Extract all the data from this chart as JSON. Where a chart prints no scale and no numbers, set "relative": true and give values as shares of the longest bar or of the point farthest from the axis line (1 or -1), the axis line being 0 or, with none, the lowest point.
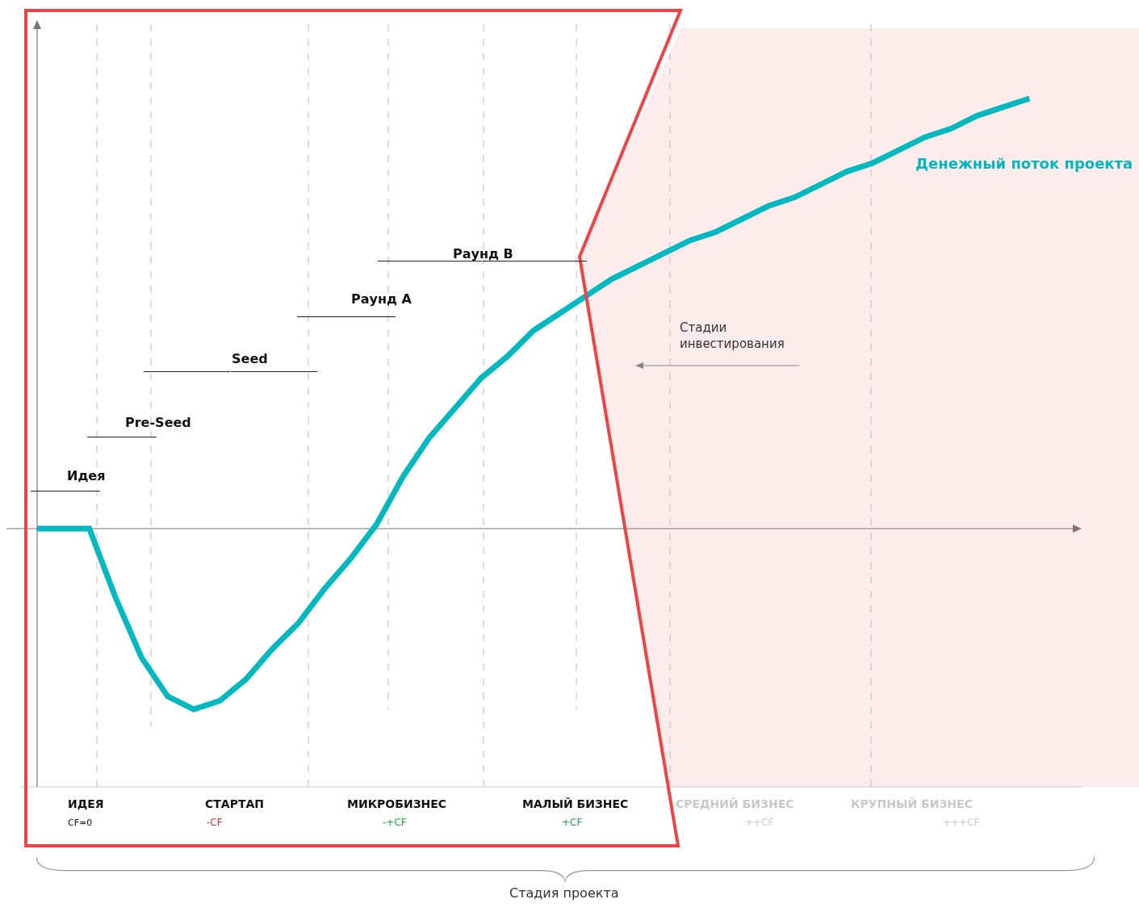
{
  "chart_data": {
    "type": "line",
    "relative": true,
    "legend": false,
    "ref_lines": [
      {
        "axis": "y",
        "value": 0,
        "color": "#777777"
      }
    ],
    "categories": [
      null,
      null,
      null,
      null,
      null,
      null,
      null,
      null,
      null,
      null,
      null,
      null,
      null,
      null,
      null,
      null,
      null,
      null,
      null,
      null,
      null,
      null,
      null,
      null,
      null,
      null,
      null,
      null,
      null,
      null,
      null,
      null,
      null,
      null,
      null,
      null,
      null,
      null,
      null,
      null,
      null
    ],
    "series": [
      {
        "name": "Денежный поток проекта",
        "color": "#00b8c0",
        "values": [
          0,
          0,
          0,
          -0.16,
          -0.3,
          -0.39,
          -0.42,
          -0.4,
          -0.35,
          -0.28,
          -0.22,
          -0.14,
          -0.07,
          0.01,
          0.12,
          0.21,
          0.28,
          0.35,
          0.4,
          0.46,
          0.5,
          0.54,
          0.58,
          0.61,
          0.64,
          0.67,
          0.69,
          0.72,
          0.75,
          0.77,
          0.8,
          0.83,
          0.85,
          0.88,
          0.91,
          0.93,
          0.96,
          0.98,
          1,
          null,
          null
        ]
      }
    ],
    "annotations": [
      "Идея",
      "Pre-Seed",
      "Seed",
      "Раунд A",
      "Раунд B",
      "Стадии\nинвестирования",
      "ИДЕЯ",
      "CF=0",
      "СТАРТАП",
      "-CF",
      "МИКРОБИЗНЕС",
      "-+CF",
      "МАЛЫЙ БИЗНЕС",
      "+CF",
      "СРЕДНИЙ БИЗНЕС",
      "++CF",
      "КРУПНЫЙ БИЗНЕС",
      "+++CF",
      "Стадия проекта"
    ]
  }
}
